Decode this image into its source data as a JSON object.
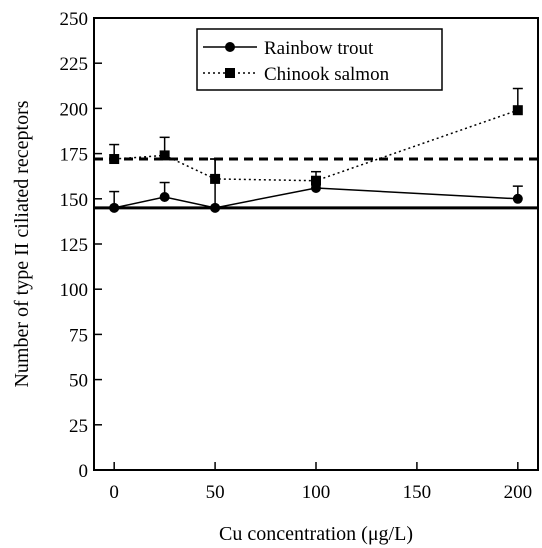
{
  "chart_data": {
    "type": "line",
    "xlabel": "Cu concentration (μg/L)",
    "ylabel": "Number of type II ciliated receptors",
    "xlim": [
      -10,
      210
    ],
    "ylim": [
      0,
      250
    ],
    "xticks": [
      0,
      50,
      100,
      150,
      200
    ],
    "yticks": [
      0,
      25,
      50,
      75,
      100,
      125,
      150,
      175,
      200,
      225,
      250
    ],
    "grid": false,
    "legend_position": "top-center",
    "series": [
      {
        "name": "Rainbow trout",
        "marker": "circle",
        "line_style": "solid",
        "x": [
          0,
          25,
          50,
          100,
          200
        ],
        "y": [
          145,
          151,
          145,
          156,
          150
        ],
        "error_upper": [
          154,
          159,
          172,
          159,
          157
        ]
      },
      {
        "name": "Chinook salmon",
        "marker": "square",
        "line_style": "dotted",
        "x": [
          0,
          25,
          50,
          100,
          200
        ],
        "y": [
          172,
          174,
          161,
          160,
          199
        ],
        "error_upper": [
          180,
          184,
          172,
          165,
          211
        ]
      }
    ],
    "reference_lines": [
      {
        "series": "Rainbow trout",
        "y": 145,
        "style": "solid"
      },
      {
        "series": "Chinook salmon",
        "y": 172,
        "style": "dashed"
      }
    ]
  }
}
